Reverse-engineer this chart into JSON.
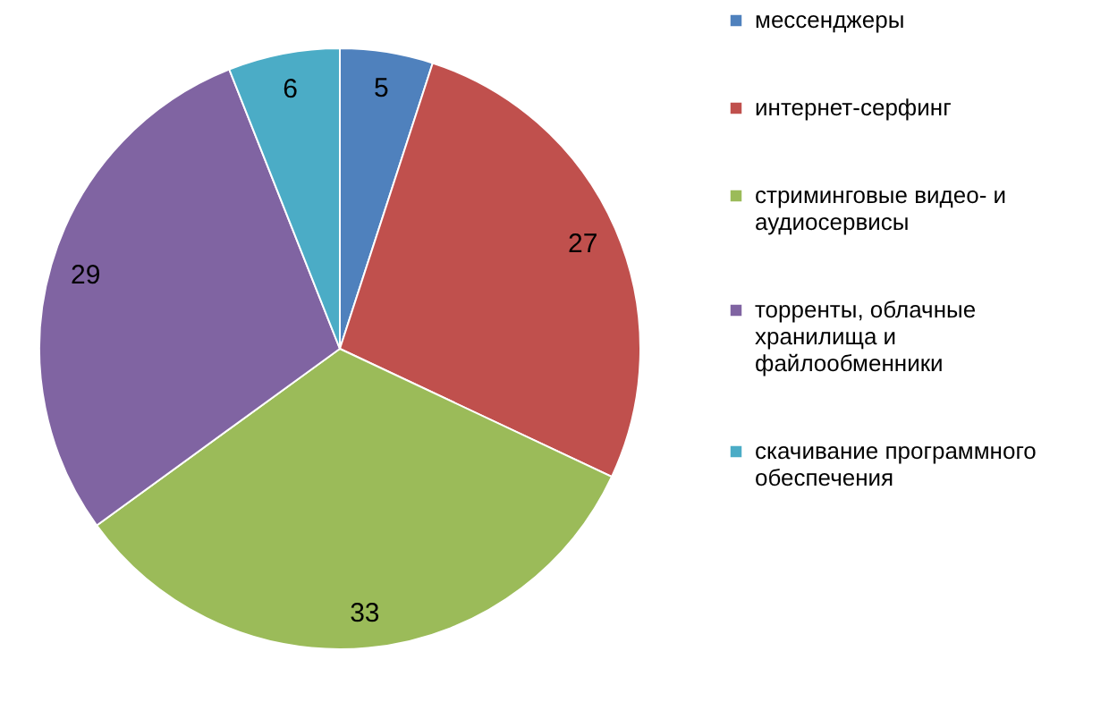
{
  "chart_data": {
    "type": "pie",
    "categories": [
      "мессенджеры",
      "интернет-серфинг",
      "стриминговые видео- и аудиосервисы",
      "торренты, облачные хранилища и файлообменники",
      "скачивание программного обеспечения"
    ],
    "values": [
      5,
      27,
      33,
      29,
      6
    ],
    "colors": [
      "#4f81bd",
      "#c0504d",
      "#9bbb59",
      "#8064a2",
      "#4bacc6"
    ],
    "data_labels": true,
    "legend": "right"
  }
}
